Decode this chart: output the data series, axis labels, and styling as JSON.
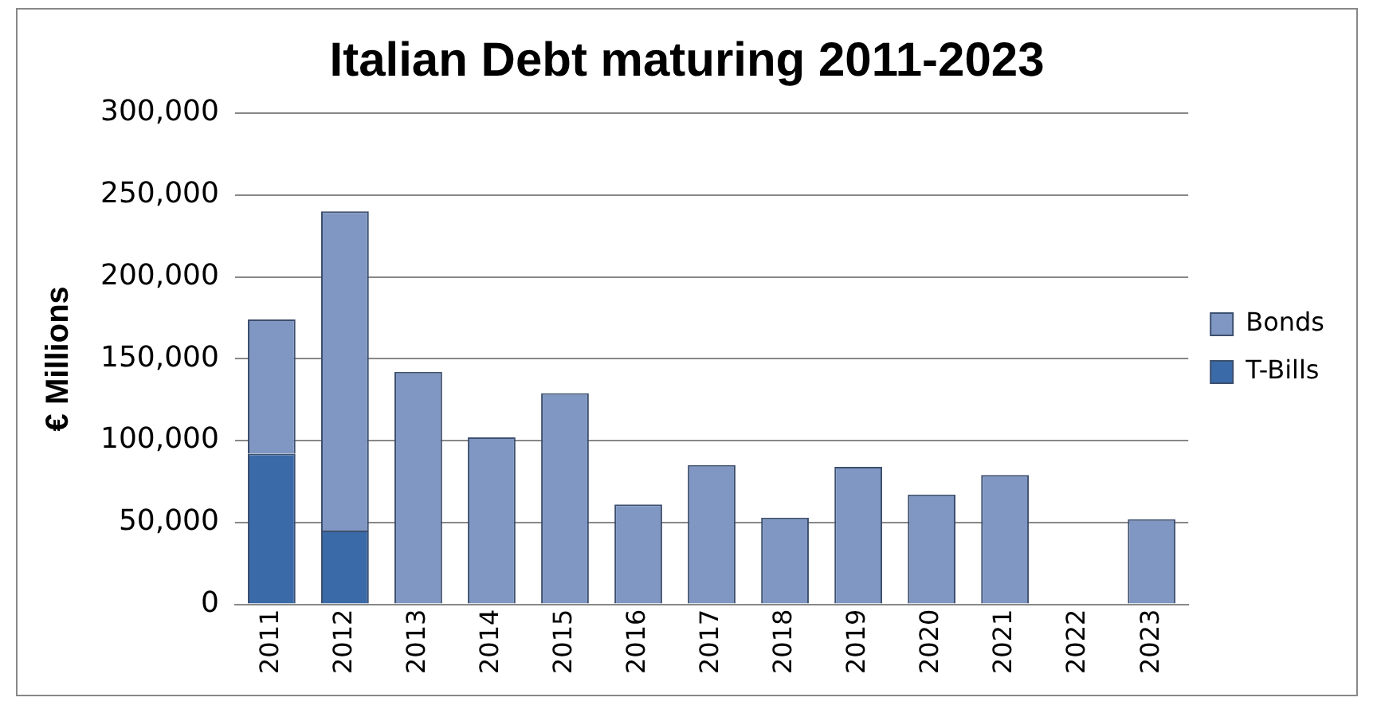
{
  "chart_data": {
    "type": "bar",
    "title": "Italian Debt maturing 2011-2023",
    "ylabel": "€ Millions",
    "categories": [
      "2011",
      "2012",
      "2013",
      "2014",
      "2015",
      "2016",
      "2017",
      "2018",
      "2019",
      "2020",
      "2021",
      "2022",
      "2023"
    ],
    "stacked": true,
    "series": [
      {
        "name": "T-Bills",
        "color": "#3a6aa8",
        "values": [
          92000,
          45000,
          null,
          null,
          null,
          null,
          null,
          null,
          null,
          null,
          null,
          null,
          null
        ]
      },
      {
        "name": "Bonds",
        "color": "#7f97c2",
        "values": [
          82000,
          195000,
          142000,
          102000,
          129000,
          61000,
          85000,
          53000,
          84000,
          67000,
          79000,
          null,
          52000
        ]
      }
    ],
    "ylim": [
      0,
      300000
    ],
    "yticks": [
      {
        "value": 0,
        "label": "0"
      },
      {
        "value": 50000,
        "label": "50,000"
      },
      {
        "value": 100000,
        "label": "100,000"
      },
      {
        "value": 150000,
        "label": "150,000"
      },
      {
        "value": 200000,
        "label": "200,000"
      },
      {
        "value": 250000,
        "label": "250,000"
      },
      {
        "value": 300000,
        "label": "300,000"
      }
    ],
    "grid": "y",
    "legend": "right"
  }
}
